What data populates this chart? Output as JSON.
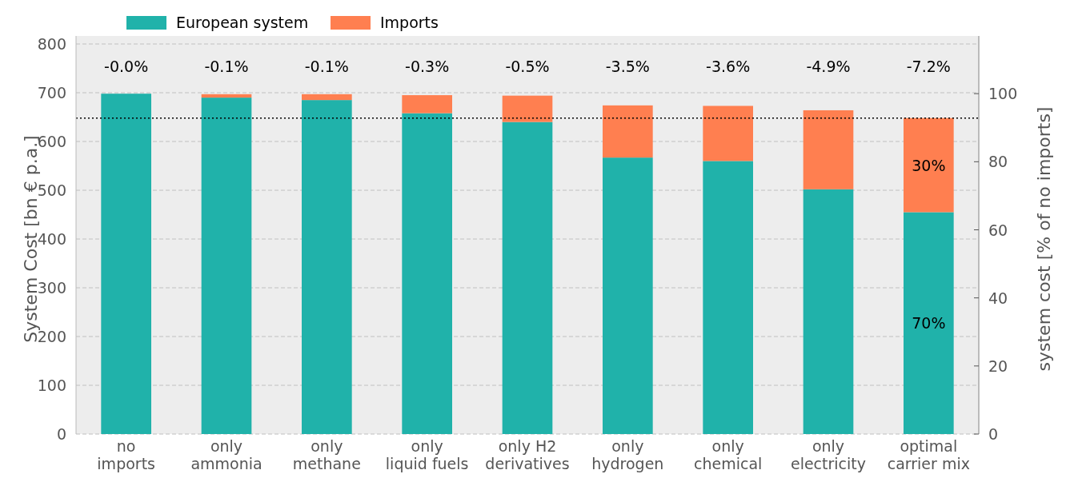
{
  "chart_data": {
    "type": "bar",
    "stacked": true,
    "categories": [
      "no\nimports",
      "only\nammonia",
      "only\nmethane",
      "only\nliquid fuels",
      "only H2\nderivatives",
      "only\nhydrogen",
      "only\nchemical",
      "only\nelectricity",
      "optimal\ncarrier mix"
    ],
    "series": [
      {
        "name": "European system",
        "color": "#20b2aa",
        "values": [
          698,
          690,
          685,
          658,
          640,
          567,
          560,
          502,
          455
        ]
      },
      {
        "name": "Imports",
        "color": "#ff7f50",
        "values": [
          0,
          7,
          12,
          37,
          54,
          107,
          113,
          162,
          193
        ]
      }
    ],
    "ylabel": "System Cost [bn € p.a.]",
    "y2label": "system cost [% of no imports]",
    "ylim": [
      0,
      800
    ],
    "yticks": [
      0,
      100,
      200,
      300,
      400,
      500,
      600,
      700,
      800
    ],
    "y2lim": [
      0,
      114.6
    ],
    "y2ticks": [
      0,
      20,
      40,
      60,
      80,
      100
    ],
    "ref_lines": [
      {
        "axis": "y",
        "value": 648,
        "color": "#000000",
        "line_style": "dotted"
      }
    ],
    "annotations": [
      "-0.0%",
      "-0.1%",
      "-0.1%",
      "-0.3%",
      "-0.5%",
      "-3.5%",
      "-3.6%",
      "-4.9%",
      "-7.2%",
      "30%",
      "70%"
    ],
    "grid": "y",
    "legend": "top"
  }
}
